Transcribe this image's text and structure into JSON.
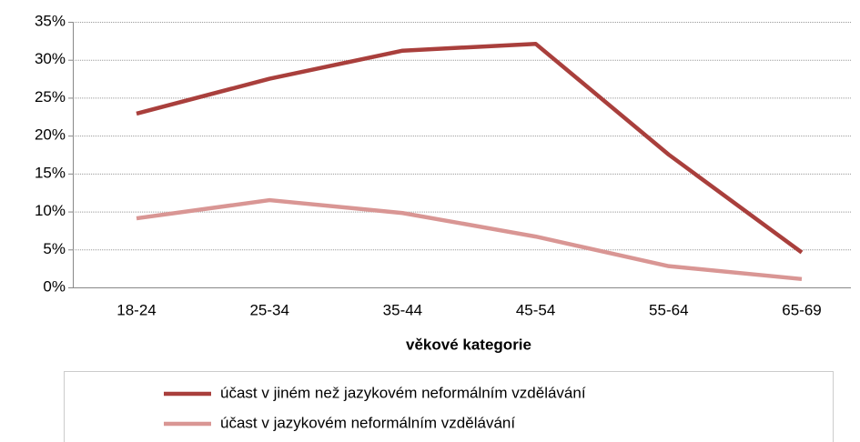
{
  "chart_data": {
    "type": "line",
    "x_label": "věkové kategorie",
    "categories": [
      "18-24",
      "25-34",
      "35-44",
      "45-54",
      "55-64",
      "65-69"
    ],
    "series": [
      {
        "name": "účast v jiném než jazykovém neformálním vzdělávání",
        "color": "#a93f3c",
        "values": [
          22.9,
          27.5,
          31.2,
          32.1,
          17.5,
          4.6
        ]
      },
      {
        "name": "účast v jazykovém neformálním vzdělávání",
        "color": "#d99694",
        "values": [
          9.1,
          11.5,
          9.8,
          6.7,
          2.8,
          1.1
        ]
      }
    ],
    "ylim": [
      0,
      35
    ],
    "yticks": [
      {
        "value": 0,
        "label": "0%"
      },
      {
        "value": 5,
        "label": "5%"
      },
      {
        "value": 10,
        "label": "10%"
      },
      {
        "value": 15,
        "label": "15%"
      },
      {
        "value": 20,
        "label": "20%"
      },
      {
        "value": 25,
        "label": "25%"
      },
      {
        "value": 30,
        "label": "30%"
      },
      {
        "value": 35,
        "label": "35%"
      }
    ],
    "grid": true,
    "legend": "bottom"
  }
}
